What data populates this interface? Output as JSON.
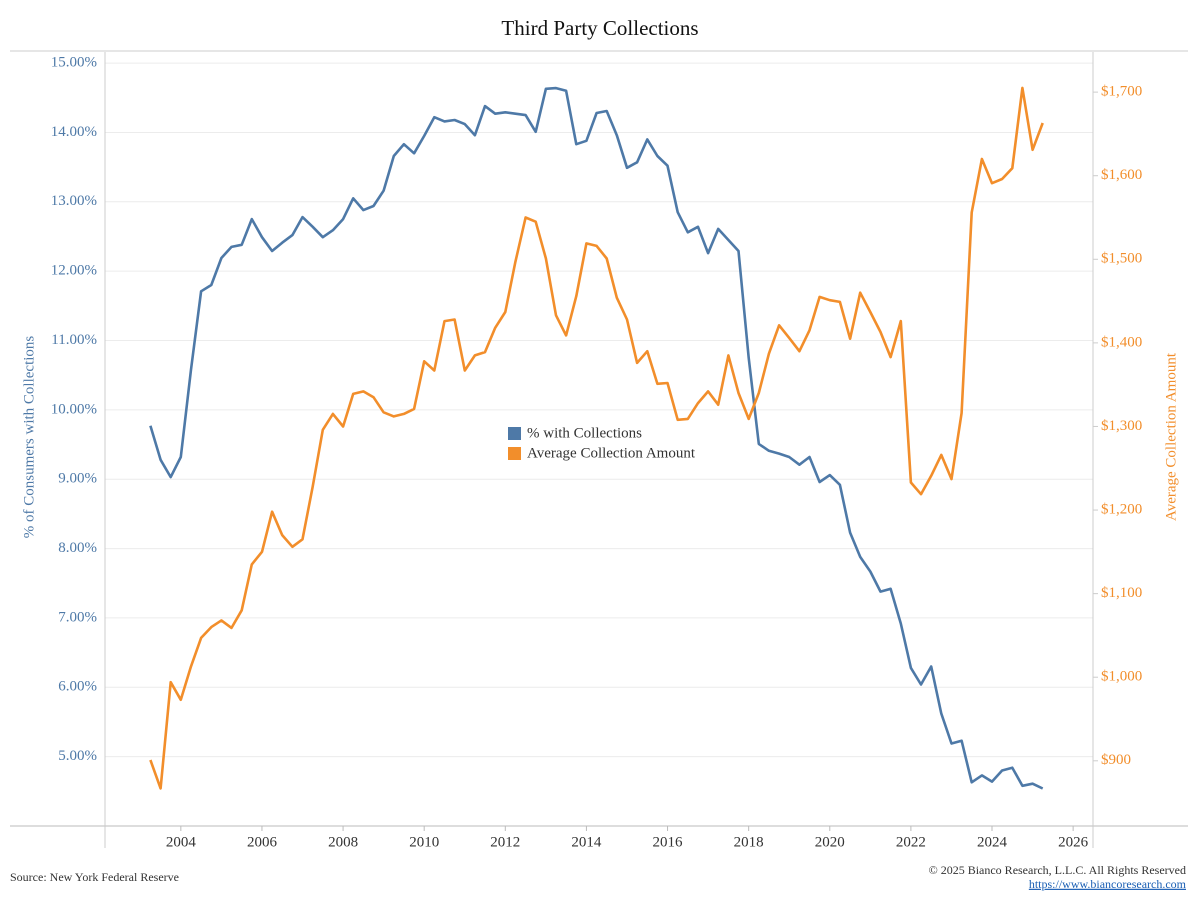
{
  "chart_data": {
    "type": "line",
    "title": "Third Party Collections",
    "x": [
      2003.25,
      2003.5,
      2003.75,
      2004,
      2004.25,
      2004.5,
      2004.75,
      2005,
      2005.25,
      2005.5,
      2005.75,
      2006,
      2006.25,
      2006.5,
      2006.75,
      2007,
      2007.25,
      2007.5,
      2007.75,
      2008,
      2008.25,
      2008.5,
      2008.75,
      2009,
      2009.25,
      2009.5,
      2009.75,
      2010,
      2010.25,
      2010.5,
      2010.75,
      2011,
      2011.25,
      2011.5,
      2011.75,
      2012,
      2012.25,
      2012.5,
      2012.75,
      2013,
      2013.25,
      2013.5,
      2013.75,
      2014,
      2014.25,
      2014.5,
      2014.75,
      2015,
      2015.25,
      2015.5,
      2015.75,
      2016,
      2016.25,
      2016.5,
      2016.75,
      2017,
      2017.25,
      2017.5,
      2017.75,
      2018,
      2018.25,
      2018.5,
      2018.75,
      2019,
      2019.25,
      2019.5,
      2019.75,
      2020,
      2020.25,
      2020.5,
      2020.75,
      2021,
      2021.25,
      2021.5,
      2021.75,
      2022,
      2022.25,
      2022.5,
      2022.75,
      2023,
      2023.25,
      2023.5,
      2023.75,
      2024,
      2024.25,
      2024.5,
      2024.75,
      2025,
      2025.25
    ],
    "xlim": [
      2002.13,
      2026.49
    ],
    "xticks": [
      2004,
      2006,
      2008,
      2010,
      2012,
      2014,
      2016,
      2018,
      2020,
      2022,
      2024,
      2026
    ],
    "ylim": [
      4.0,
      15.16
    ],
    "yticks": [
      {
        "value": 5,
        "label": "5.00%"
      },
      {
        "value": 6,
        "label": "6.00%"
      },
      {
        "value": 7,
        "label": "7.00%"
      },
      {
        "value": 8,
        "label": "8.00%"
      },
      {
        "value": 9,
        "label": "9.00%"
      },
      {
        "value": 10,
        "label": "10.00%"
      },
      {
        "value": 11,
        "label": "11.00%"
      },
      {
        "value": 12,
        "label": "12.00%"
      },
      {
        "value": 13,
        "label": "13.00%"
      },
      {
        "value": 14,
        "label": "14.00%"
      },
      {
        "value": 15,
        "label": "15.00%"
      }
    ],
    "y2lim": [
      822,
      1748
    ],
    "y2ticks": [
      {
        "value": 900,
        "label": "$900"
      },
      {
        "value": 1000,
        "label": "$1,000"
      },
      {
        "value": 1100,
        "label": "$1,100"
      },
      {
        "value": 1200,
        "label": "$1,200"
      },
      {
        "value": 1300,
        "label": "$1,300"
      },
      {
        "value": 1400,
        "label": "$1,400"
      },
      {
        "value": 1500,
        "label": "$1,500"
      },
      {
        "value": 1600,
        "label": "$1,600"
      },
      {
        "value": 1700,
        "label": "$1,700"
      }
    ],
    "y_label": "% of Consumers with Collections",
    "y2_label": "Average Collection Amount",
    "grid": true,
    "legend": "center",
    "series": [
      {
        "name": "% with Collections",
        "color": "#4e79a7",
        "values": [
          9.77,
          9.28,
          9.03,
          9.32,
          10.58,
          11.71,
          11.8,
          12.19,
          12.35,
          12.38,
          12.75,
          12.49,
          12.29,
          12.41,
          12.52,
          12.78,
          12.64,
          12.49,
          12.59,
          12.75,
          13.05,
          12.88,
          12.94,
          13.16,
          13.66,
          13.83,
          13.7,
          13.95,
          14.22,
          14.16,
          14.18,
          14.12,
          13.96,
          14.38,
          14.27,
          14.29,
          14.27,
          14.25,
          14.01,
          14.63,
          14.64,
          14.6,
          13.83,
          13.88,
          14.28,
          14.31,
          13.96,
          13.49,
          13.57,
          13.9,
          13.66,
          13.52,
          12.85,
          12.56,
          12.64,
          12.26,
          12.61,
          12.45,
          12.29,
          10.75,
          9.51,
          9.41,
          9.37,
          9.32,
          9.21,
          9.32,
          8.96,
          9.06,
          8.92,
          8.23,
          7.88,
          7.67,
          7.38,
          7.42,
          6.92,
          6.28,
          6.04,
          6.3,
          5.62,
          5.19,
          5.23,
          4.63,
          4.73,
          4.64,
          4.8,
          4.84,
          4.58,
          4.61,
          4.54
        ]
      },
      {
        "name": "Average Collection Amount",
        "color": "#f28e2b",
        "axis": "y2",
        "values": [
          901,
          867,
          994,
          973,
          1013,
          1047,
          1060,
          1068,
          1059,
          1080,
          1135,
          1150,
          1198,
          1170,
          1156,
          1165,
          1228,
          1296,
          1315,
          1300,
          1339,
          1342,
          1335,
          1317,
          1312,
          1315,
          1321,
          1378,
          1367,
          1426,
          1428,
          1367,
          1385,
          1389,
          1418,
          1437,
          1497,
          1550,
          1545,
          1501,
          1433,
          1409,
          1456,
          1519,
          1516,
          1501,
          1454,
          1428,
          1376,
          1390,
          1351,
          1352,
          1308,
          1309,
          1328,
          1342,
          1326,
          1385,
          1340,
          1309,
          1340,
          1387,
          1421,
          1406,
          1390,
          1415,
          1455,
          1451,
          1449,
          1405,
          1460,
          1437,
          1413,
          1383,
          1426,
          1233,
          1219,
          1241,
          1266,
          1237,
          1316,
          1556,
          1620,
          1591,
          1596,
          1609,
          1705,
          1631,
          1663
        ]
      }
    ]
  },
  "footer": {
    "source": "Source: New York Federal Reserve",
    "copyright": "© 2025 Bianco Research, L.L.C. All Rights Reserved",
    "url": "https://www.biancoresearch.com"
  }
}
